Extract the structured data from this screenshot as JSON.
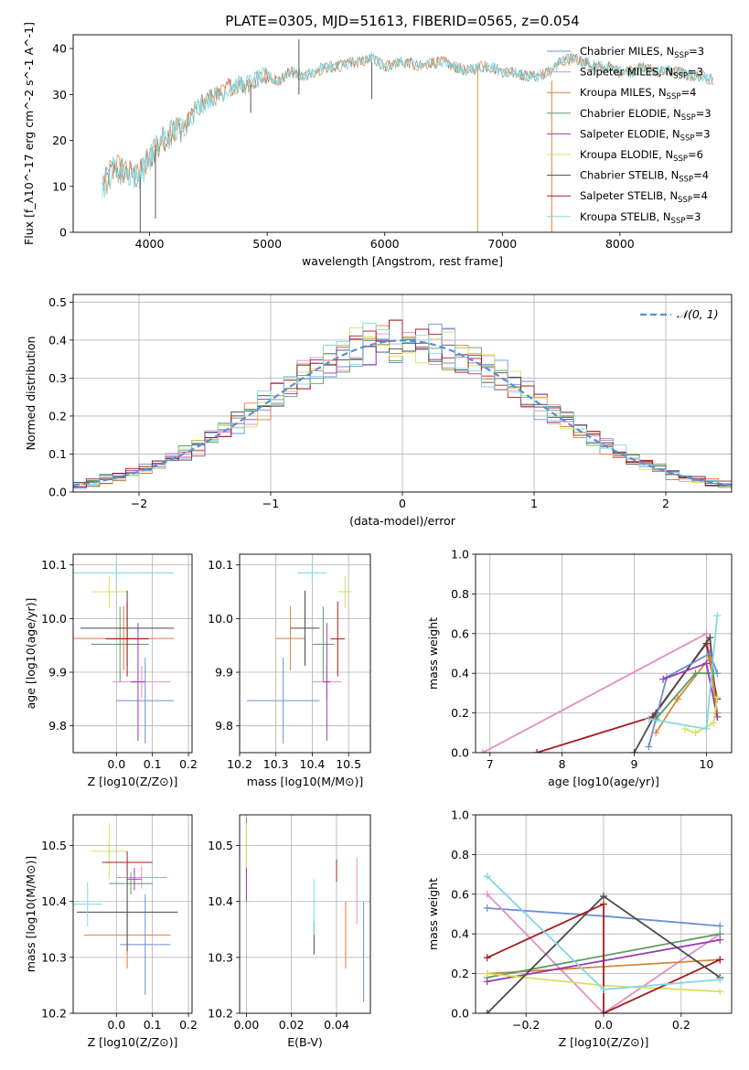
{
  "figure": {
    "title": "PLATE=0305, MJD=51613, FIBERID=0565, z=0.054"
  },
  "colors": {
    "c0": "#6a8fd6",
    "c1": "#e07b39",
    "c2": "#d4873a",
    "c3": "#5f9a62",
    "c4": "#9b3ab3",
    "c5": "#d8e060",
    "c6": "#4a4a4a",
    "c7": "#a31f1f",
    "c8": "#7fd9e0",
    "c9": "#e38fc3",
    "pink": "#e38fc3"
  },
  "models": [
    {
      "name": "Chabrier MILES",
      "nssp": "3",
      "color": "#6a8fd6"
    },
    {
      "name": "Salpeter MILES",
      "nssp": "3",
      "color": "#e38fc3"
    },
    {
      "name": "Kroupa MILES",
      "nssp": "4",
      "color": "#d4873a"
    },
    {
      "name": "Chabrier ELODIE",
      "nssp": "3",
      "color": "#5f9a62"
    },
    {
      "name": "Salpeter ELODIE",
      "nssp": "3",
      "color": "#9b3ab3"
    },
    {
      "name": "Kroupa ELODIE",
      "nssp": "6",
      "color": "#d8e060"
    },
    {
      "name": "Chabrier STELIB",
      "nssp": "4",
      "color": "#4a4a4a"
    },
    {
      "name": "Salpeter STELIB",
      "nssp": "4",
      "color": "#a31f1f"
    },
    {
      "name": "Kroupa STELIB",
      "nssp": "3",
      "color": "#7fd9e0"
    }
  ],
  "chart_data": [
    {
      "id": "spectrum",
      "type": "line",
      "xlabel": "wavelength [Angstrom, rest frame]",
      "ylabel": "Flux [f_λ10^-17 erg cm^-2 s^-1 A^-1]",
      "xlim": [
        3350,
        8950
      ],
      "ylim": [
        0,
        43
      ],
      "xticks": [
        4000,
        5000,
        6000,
        7000,
        8000
      ],
      "yticks": [
        0,
        10,
        20,
        30,
        40
      ],
      "legend_position": "right",
      "envelope": [
        [
          3600,
          10
        ],
        [
          3700,
          14
        ],
        [
          3800,
          13
        ],
        [
          3900,
          12
        ],
        [
          4000,
          16
        ],
        [
          4100,
          20
        ],
        [
          4200,
          22
        ],
        [
          4300,
          23
        ],
        [
          4400,
          27
        ],
        [
          4500,
          29
        ],
        [
          4600,
          30
        ],
        [
          4700,
          32
        ],
        [
          4800,
          32
        ],
        [
          4900,
          33
        ],
        [
          5000,
          34
        ],
        [
          5100,
          33
        ],
        [
          5200,
          35
        ],
        [
          5300,
          34
        ],
        [
          5400,
          35
        ],
        [
          5500,
          36
        ],
        [
          5600,
          36
        ],
        [
          5700,
          37
        ],
        [
          5800,
          37
        ],
        [
          5900,
          38
        ],
        [
          6000,
          36
        ],
        [
          6100,
          37
        ],
        [
          6200,
          37
        ],
        [
          6300,
          36
        ],
        [
          6400,
          37
        ],
        [
          6500,
          37
        ],
        [
          6600,
          36
        ],
        [
          6700,
          35
        ],
        [
          6800,
          36
        ],
        [
          6900,
          36
        ],
        [
          7000,
          35
        ],
        [
          7100,
          35
        ],
        [
          7200,
          34
        ],
        [
          7300,
          34
        ],
        [
          7400,
          35
        ],
        [
          7500,
          37
        ],
        [
          7600,
          38
        ],
        [
          7700,
          37
        ],
        [
          7800,
          36
        ],
        [
          7900,
          36
        ],
        [
          8000,
          35
        ],
        [
          8100,
          35
        ],
        [
          8200,
          36
        ],
        [
          8300,
          35
        ],
        [
          8400,
          35
        ],
        [
          8500,
          35
        ],
        [
          8600,
          34
        ],
        [
          8700,
          34
        ],
        [
          8800,
          33
        ]
      ],
      "spikes": [
        [
          3920,
          0,
          12
        ],
        [
          4050,
          3,
          18
        ],
        [
          4860,
          26,
          32
        ],
        [
          5270,
          30,
          42
        ],
        [
          5890,
          29,
          37
        ],
        [
          6790,
          0,
          36
        ],
        [
          7420,
          0,
          33
        ]
      ]
    },
    {
      "id": "residuals",
      "type": "histogram",
      "xlabel": "(data-model)/error",
      "ylabel": "Normed distribution",
      "xlim": [
        -2.5,
        2.5
      ],
      "ylim": [
        0,
        0.52
      ],
      "xticks": [
        -2,
        -1,
        0,
        1,
        2
      ],
      "yticks": [
        0.0,
        0.1,
        0.2,
        0.3,
        0.4,
        0.5
      ],
      "legend": [
        "𝒩(0, 1)"
      ],
      "bin_edges_start": -2.5,
      "bin_width": 0.1
    },
    {
      "id": "age-vs-Z",
      "type": "scatter",
      "xlabel": "Z [log10(Z/Z⊙)]",
      "ylabel": "age  [log10(age/yr)]",
      "xlim": [
        -0.12,
        0.21
      ],
      "ylim": [
        9.75,
        10.12
      ],
      "xticks": [
        0.0,
        0.1,
        0.2
      ],
      "yticks": [
        9.8,
        9.9,
        10.0,
        10.1
      ],
      "points": [
        {
          "x": 0.08,
          "y": 9.847,
          "xerr": 0.08,
          "yerr": 0.08,
          "c": "#6a8fd6"
        },
        {
          "x": 0.07,
          "y": 9.882,
          "xerr": 0.08,
          "yerr": 0.03,
          "c": "#e38fc3"
        },
        {
          "x": 0.02,
          "y": 9.963,
          "xerr": 0.14,
          "yerr": 0.06,
          "c": "#e07b39"
        },
        {
          "x": 0.01,
          "y": 9.952,
          "xerr": 0.08,
          "yerr": 0.07,
          "c": "#5f9a62"
        },
        {
          "x": 0.06,
          "y": 9.882,
          "xerr": 0.02,
          "yerr": 0.11,
          "c": "#9b3ab3"
        },
        {
          "x": -0.02,
          "y": 10.05,
          "xerr": 0.05,
          "yerr": 0.03,
          "c": "#d8e060"
        },
        {
          "x": 0.03,
          "y": 9.982,
          "xerr": 0.13,
          "yerr": 0.07,
          "c": "#4a4a4a"
        },
        {
          "x": 0.03,
          "y": 9.962,
          "xerr": 0.06,
          "yerr": 0.07,
          "c": "#a31f1f"
        },
        {
          "x": 0.0,
          "y": 10.085,
          "xerr": 0.16,
          "yerr": 0.02,
          "c": "#7fd9e0"
        }
      ]
    },
    {
      "id": "age-vs-mass",
      "type": "scatter",
      "xlabel": "mass [log10(M/M⊙)]",
      "ylabel": "",
      "xlim": [
        10.2,
        10.56
      ],
      "ylim": [
        9.75,
        10.12
      ],
      "xticks": [
        10.2,
        10.3,
        10.4,
        10.5
      ],
      "yticks": [
        9.8,
        9.9,
        10.0,
        10.1
      ],
      "points": [
        {
          "x": 10.32,
          "y": 9.847,
          "xerr": 0.1,
          "yerr": 0.08,
          "c": "#6a8fd6"
        },
        {
          "x": 10.44,
          "y": 9.882,
          "xerr": 0.04,
          "yerr": 0.03,
          "c": "#e38fc3"
        },
        {
          "x": 10.34,
          "y": 9.963,
          "xerr": 0.04,
          "yerr": 0.06,
          "c": "#e07b39"
        },
        {
          "x": 10.43,
          "y": 9.952,
          "xerr": 0.03,
          "yerr": 0.07,
          "c": "#5f9a62"
        },
        {
          "x": 10.44,
          "y": 9.882,
          "xerr": 0.01,
          "yerr": 0.11,
          "c": "#9b3ab3"
        },
        {
          "x": 10.49,
          "y": 10.05,
          "xerr": 0.02,
          "yerr": 0.03,
          "c": "#d8e060"
        },
        {
          "x": 10.38,
          "y": 9.982,
          "xerr": 0.04,
          "yerr": 0.07,
          "c": "#4a4a4a"
        },
        {
          "x": 10.47,
          "y": 9.962,
          "xerr": 0.02,
          "yerr": 0.07,
          "c": "#a31f1f"
        },
        {
          "x": 10.4,
          "y": 10.085,
          "xerr": 0.04,
          "yerr": 0.02,
          "c": "#7fd9e0"
        }
      ]
    },
    {
      "id": "mass-weight-vs-age",
      "type": "line",
      "xlabel": "age  [log10(age/yr)]",
      "ylabel": "mass weight",
      "xlim": [
        6.8,
        10.35
      ],
      "ylim": [
        0,
        1.0
      ],
      "xticks": [
        7,
        8,
        9,
        10
      ],
      "yticks": [
        0.0,
        0.2,
        0.4,
        0.6,
        0.8,
        1.0
      ],
      "series": [
        {
          "c": "#e38fc3",
          "x": [
            6.9,
            10.0,
            10.15
          ],
          "y": [
            0.0,
            0.6,
            0.18
          ]
        },
        {
          "c": "#a31f1f",
          "x": [
            7.65,
            9.25,
            10.0,
            10.15
          ],
          "y": [
            0.0,
            0.18,
            0.55,
            0.27
          ]
        },
        {
          "c": "#4a4a4a",
          "x": [
            9.0,
            9.3,
            10.05,
            10.15
          ],
          "y": [
            0.0,
            0.2,
            0.58,
            0.18
          ]
        },
        {
          "c": "#6a8fd6",
          "x": [
            9.2,
            9.45,
            10.05,
            10.15
          ],
          "y": [
            0.03,
            0.38,
            0.5,
            0.4
          ]
        },
        {
          "c": "#d4873a",
          "x": [
            9.3,
            9.6,
            10.05,
            10.15
          ],
          "y": [
            0.1,
            0.27,
            0.48,
            0.2
          ]
        },
        {
          "c": "#5f9a62",
          "x": [
            9.3,
            9.85,
            10.1
          ],
          "y": [
            0.17,
            0.4,
            0.4
          ]
        },
        {
          "c": "#9b3ab3",
          "x": [
            9.4,
            10.0,
            10.15
          ],
          "y": [
            0.37,
            0.45,
            0.18
          ]
        },
        {
          "c": "#d8e060",
          "x": [
            9.7,
            9.85,
            10.1,
            10.15
          ],
          "y": [
            0.12,
            0.1,
            0.15,
            0.28
          ]
        },
        {
          "c": "#7fd9e0",
          "x": [
            9.2,
            10.0,
            10.15
          ],
          "y": [
            0.17,
            0.12,
            0.69
          ]
        }
      ]
    },
    {
      "id": "mass-vs-Z",
      "type": "scatter",
      "xlabel": "Z [log10(Z/Z⊙)]",
      "ylabel": "mass [log10(M/M⊙)]",
      "xlim": [
        -0.12,
        0.21
      ],
      "ylim": [
        10.2,
        10.555
      ],
      "xticks": [
        0.0,
        0.1,
        0.2
      ],
      "yticks": [
        10.2,
        10.3,
        10.4,
        10.5
      ],
      "points": [
        {
          "x": 0.08,
          "y": 10.323,
          "xerr": 0.07,
          "yerr": 0.09,
          "c": "#6a8fd6"
        },
        {
          "x": 0.07,
          "y": 10.443,
          "xerr": 0.07,
          "yerr": 0.02,
          "c": "#e38fc3"
        },
        {
          "x": 0.03,
          "y": 10.34,
          "xerr": 0.12,
          "yerr": 0.06,
          "c": "#e07b39"
        },
        {
          "x": 0.04,
          "y": 10.432,
          "xerr": 0.06,
          "yerr": 0.02,
          "c": "#5f9a62"
        },
        {
          "x": 0.05,
          "y": 10.44,
          "xerr": 0.02,
          "yerr": 0.02,
          "c": "#9b3ab3"
        },
        {
          "x": -0.02,
          "y": 10.49,
          "xerr": 0.05,
          "yerr": 0.05,
          "c": "#d8e060"
        },
        {
          "x": 0.03,
          "y": 10.381,
          "xerr": 0.14,
          "yerr": 0.07,
          "c": "#4a4a4a"
        },
        {
          "x": 0.03,
          "y": 10.47,
          "xerr": 0.07,
          "yerr": 0.02,
          "c": "#a31f1f"
        },
        {
          "x": -0.08,
          "y": 10.395,
          "xerr": 0.04,
          "yerr": 0.04,
          "c": "#7fd9e0"
        }
      ]
    },
    {
      "id": "mass-vs-EBV",
      "type": "scatter",
      "xlabel": "E(B-V)",
      "ylabel": "",
      "xlim": [
        -0.003,
        0.055
      ],
      "ylim": [
        10.2,
        10.555
      ],
      "xticks": [
        0.0,
        0.02,
        0.04
      ],
      "yticks": [
        10.2,
        10.3,
        10.4,
        10.5
      ],
      "points": [
        {
          "x": 0.052,
          "y": 10.31,
          "xerr": 0,
          "yerr": 0.09,
          "c": "#6a8fd6"
        },
        {
          "x": 0.049,
          "y": 10.42,
          "xerr": 0,
          "yerr": 0.06,
          "c": "#e38fc3"
        },
        {
          "x": 0.044,
          "y": 10.34,
          "xerr": 0,
          "yerr": 0.06,
          "c": "#e07b39"
        },
        {
          "x": 0.0,
          "y": 10.5,
          "xerr": 0,
          "yerr": 0.05,
          "c": "#5f9a62"
        },
        {
          "x": 0.0,
          "y": 10.43,
          "xerr": 0,
          "yerr": 0.03,
          "c": "#9b3ab3"
        },
        {
          "x": 0.0,
          "y": 10.5,
          "xerr": 0,
          "yerr": 0.04,
          "c": "#d8e060"
        },
        {
          "x": 0.03,
          "y": 10.335,
          "xerr": 0,
          "yerr": 0.03,
          "c": "#4a4a4a"
        },
        {
          "x": 0.04,
          "y": 10.455,
          "xerr": 0,
          "yerr": 0.02,
          "c": "#a31f1f"
        },
        {
          "x": 0.03,
          "y": 10.39,
          "xerr": 0,
          "yerr": 0.05,
          "c": "#7fd9e0"
        }
      ]
    },
    {
      "id": "mass-weight-vs-Z",
      "type": "line",
      "xlabel": "Z [log10(Z/Z⊙)]",
      "ylabel": "mass weight",
      "xlim": [
        -0.33,
        0.33
      ],
      "ylim": [
        0,
        1.0
      ],
      "xticks": [
        -0.2,
        0.0,
        0.2
      ],
      "yticks": [
        0.0,
        0.2,
        0.4,
        0.6,
        0.8,
        1.0
      ],
      "series": [
        {
          "c": "#6a8fd6",
          "x": [
            -0.3,
            0.0,
            0.3
          ],
          "y": [
            0.53,
            0.49,
            0.44
          ]
        },
        {
          "c": "#e38fc3",
          "x": [
            -0.3,
            0.0,
            0.3
          ],
          "y": [
            0.6,
            0.0,
            0.4
          ]
        },
        {
          "c": "#d4873a",
          "x": [
            -0.3,
            0.3
          ],
          "y": [
            0.2,
            0.27
          ]
        },
        {
          "c": "#5f9a62",
          "x": [
            -0.3,
            0.3
          ],
          "y": [
            0.18,
            0.4
          ]
        },
        {
          "c": "#9b3ab3",
          "x": [
            -0.3,
            0.3
          ],
          "y": [
            0.16,
            0.37
          ]
        },
        {
          "c": "#d8e060",
          "x": [
            -0.3,
            0.0,
            0.3
          ],
          "y": [
            0.2,
            0.14,
            0.11
          ]
        },
        {
          "c": "#4a4a4a",
          "x": [
            -0.3,
            0.0,
            0.3
          ],
          "y": [
            0.0,
            0.59,
            0.18
          ]
        },
        {
          "c": "#a31f1f",
          "x": [
            -0.3,
            0.0,
            0.0,
            0.3
          ],
          "y": [
            0.28,
            0.55,
            0.0,
            0.27
          ]
        },
        {
          "c": "#7fd9e0",
          "x": [
            -0.3,
            0.0,
            0.3
          ],
          "y": [
            0.69,
            0.12,
            0.17
          ]
        }
      ]
    }
  ]
}
